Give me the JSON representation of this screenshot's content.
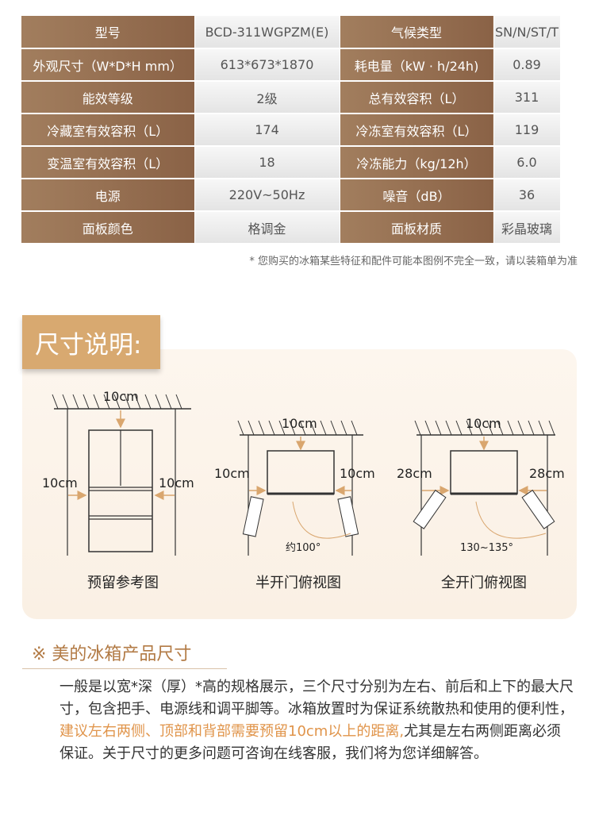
{
  "specs": [
    [
      "型号",
      "BCD-311WGPZM(E)",
      "气候类型",
      "SN/N/ST/T"
    ],
    [
      "外观尺寸（W*D*H mm）",
      "613*673*1870",
      "耗电量（kW · h/24h)",
      "0.89"
    ],
    [
      "能效等级",
      "2级",
      "总有效容积（L）",
      "311"
    ],
    [
      "冷藏室有效容积（L）",
      "174",
      "冷冻室有效容积（L）",
      "119"
    ],
    [
      "变温室有效容积（L）",
      "18",
      "冷冻能力（kg/12h）",
      "6.0"
    ],
    [
      "电源",
      "220V~50Hz",
      "噪音（dB）",
      "36"
    ],
    [
      "面板颜色",
      "格调金",
      "面板材质",
      "彩晶玻璃"
    ]
  ],
  "note": "* 您购买的冰箱某些特征和配件可能本图例不完全一致，请以装箱单为准",
  "size_title": "尺寸说明:",
  "diagrams": [
    {
      "caption": "预留参考图",
      "top": "10cm",
      "left": "10cm",
      "right": "10cm"
    },
    {
      "caption": "半开门俯视图",
      "top": "10cm",
      "left": "10cm",
      "right": "10cm",
      "angle": "约100°"
    },
    {
      "caption": "全开门俯视图",
      "top": "10cm",
      "left": "28cm",
      "right": "28cm",
      "angle": "130~135°"
    }
  ],
  "section_title": "※ 美的冰箱产品尺寸",
  "paragraph": {
    "part1": "一般是以宽*深（厚）*高的规格展示，三个尺寸分别为左右、前后和上下的最大尺寸，包含把手、电源线和调平脚等。冰箱放置时为保证系统散热和使用的便利性，",
    "highlight": "建议左右两侧、顶部和背部需要预留10cm以上的距离,",
    "part2": "尤其是左右两侧距离必须保证。关于尺寸的更多问题可咨询在线客服，我们将为您详细解答。"
  },
  "colors": {
    "brown": "#8a6246",
    "tag": "#d8a970",
    "accent": "#e0944a"
  }
}
